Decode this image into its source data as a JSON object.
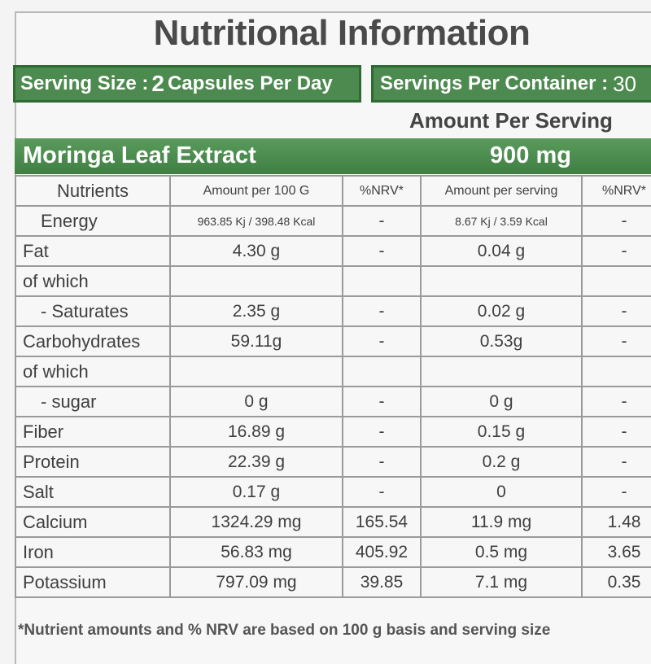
{
  "title": "Nutritional Information",
  "serving": {
    "size_label": "Serving Size :",
    "size_number": "2",
    "size_unit": "Capsules Per Day",
    "per_container_label": "Servings Per Container :",
    "per_container_value": "30"
  },
  "amount_per_serving": "Amount Per Serving",
  "extract": {
    "name": "Moringa Leaf Extract",
    "amount": "900 mg"
  },
  "table": {
    "headers": [
      "Nutrients",
      "Amount per 100 G",
      "%NRV*",
      "Amount per serving",
      "%NRV*"
    ],
    "rows": [
      [
        "Energy",
        "963.85 Kj / 398.48 Kcal",
        "-",
        "8.67 Kj / 3.59 Kcal",
        "-"
      ],
      [
        "Fat",
        "4.30 g",
        "-",
        "0.04 g",
        "-"
      ],
      [
        "of which",
        "",
        "",
        "",
        ""
      ],
      [
        "- Saturates",
        "2.35 g",
        "-",
        "0.02 g",
        "-"
      ],
      [
        "Carbohydrates",
        "59.11g",
        "-",
        "0.53g",
        "-"
      ],
      [
        "of which",
        "",
        "",
        "",
        ""
      ],
      [
        "- sugar",
        "0 g",
        "-",
        "0 g",
        "-"
      ],
      [
        "Fiber",
        "16.89 g",
        "-",
        "0.15 g",
        "-"
      ],
      [
        "Protein",
        "22.39 g",
        "-",
        "0.2 g",
        "-"
      ],
      [
        "Salt",
        "0.17 g",
        "-",
        "0",
        "-"
      ],
      [
        "Calcium",
        "1324.29 mg",
        "165.54",
        "11.9 mg",
        "1.48"
      ],
      [
        "Iron",
        "56.83 mg",
        "405.92",
        "0.5 mg",
        "3.65"
      ],
      [
        "Potassium",
        "797.09 mg",
        "39.85",
        "7.1 mg",
        "0.35"
      ]
    ]
  },
  "footnote": "*Nutrient amounts and % NRV are based on 100 g basis and serving size",
  "colors": {
    "green": "#4d8a4f",
    "dark_green": "#2f6a32",
    "grid": "#9a9a9a"
  }
}
